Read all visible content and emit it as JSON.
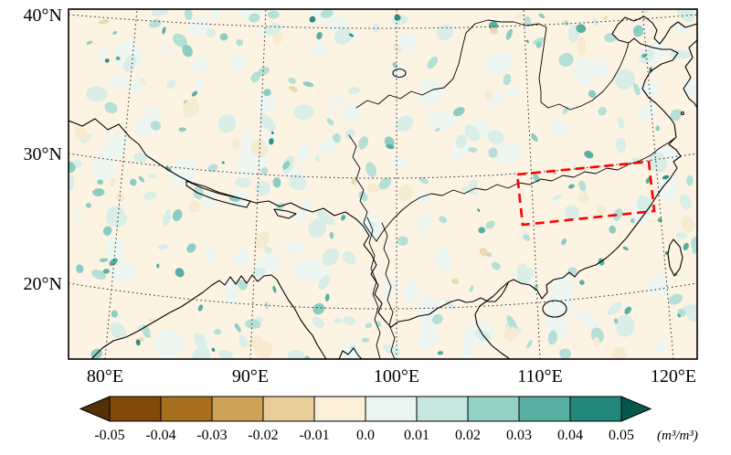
{
  "figure": {
    "background": "#ffffff"
  },
  "chart_data": {
    "type": "heatmap",
    "title": "",
    "description": "Geographic map of a noisy soil-moisture difference field (m3/m3) over South/East Asia (about 77-124E, 16-41N) on a conic projection, with dotted graticule, black coastlines, borders and rivers, and a red dashed study-region box over eastern China.",
    "x_axis": {
      "ticks": [
        "80°E",
        "90°E",
        "100°E",
        "110°E",
        "120°E"
      ]
    },
    "y_axis": {
      "ticks": [
        "40°N",
        "30°N",
        "20°N"
      ]
    },
    "grid": "dotted",
    "colorbar": {
      "min": -0.05,
      "max": 0.05,
      "interval": 0.01,
      "ticks": [
        "-0.05",
        "-0.04",
        "-0.03",
        "-0.02",
        "-0.01",
        "0.0",
        "0.01",
        "0.02",
        "0.03",
        "0.04",
        "0.05"
      ],
      "unit": "(m³/m³)",
      "colors": [
        "#543005",
        "#82490a",
        "#a96f21",
        "#cea257",
        "#e8cf9a",
        "#faf0da",
        "#e7f4ef",
        "#c5e7df",
        "#93d1c5",
        "#58ae9f",
        "#22897a",
        "#07584c"
      ]
    },
    "highlight_box": {
      "color": "#ff0000",
      "style": "dashed",
      "approx_extent": "about 107-118E, 25.5-30N"
    },
    "field": {
      "background": "#fdf3e2",
      "seed": 77,
      "palette": [
        {
          "color": "#edf6f1",
          "count": 95,
          "rmin": 6,
          "rmax": 17
        },
        {
          "color": "#d9eee7",
          "count": 85,
          "rmin": 4,
          "rmax": 12
        },
        {
          "color": "#b5e0d6",
          "count": 70,
          "rmin": 3,
          "rmax": 9
        },
        {
          "color": "#8bcdc0",
          "count": 45,
          "rmin": 2.5,
          "rmax": 7
        },
        {
          "color": "#57b0a1",
          "count": 30,
          "rmin": 2,
          "rmax": 5.5
        },
        {
          "color": "#2e8f81",
          "count": 14,
          "rmin": 1.5,
          "rmax": 4
        },
        {
          "color": "#f6ead0",
          "count": 25,
          "rmin": 4,
          "rmax": 11
        },
        {
          "color": "#ecd9ae",
          "count": 8,
          "rmin": 2.5,
          "rmax": 6
        }
      ]
    }
  }
}
